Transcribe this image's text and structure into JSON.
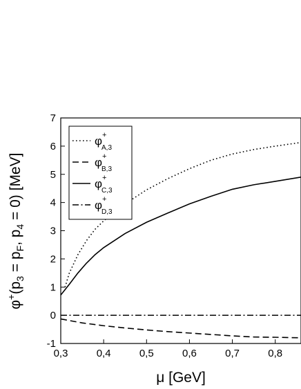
{
  "chart_data": {
    "type": "line",
    "title": "",
    "xlabel": "μ [GeV]",
    "ylabel": "φ⁺(p₃ = p_F, p₄ = 0) [MeV]",
    "ylabel_parts": {
      "phi": "φ",
      "sup": "+",
      "rest1": "(p",
      "sub1": "3",
      "rest2": " = p",
      "sub2": "F",
      "rest3": ", p",
      "sub3": "4",
      "rest4": " = 0) [MeV]"
    },
    "xlim": [
      0.3,
      0.86
    ],
    "ylim": [
      -1,
      7
    ],
    "xticks": [
      0.3,
      0.4,
      0.5,
      0.6,
      0.7,
      0.8
    ],
    "xtick_labels": [
      "0,3",
      "0,4",
      "0,5",
      "0,6",
      "0,7",
      "0,8"
    ],
    "yticks": [
      -1,
      0,
      1,
      2,
      3,
      4,
      5,
      6,
      7
    ],
    "ytick_labels": [
      "-1",
      "0",
      "1",
      "2",
      "3",
      "4",
      "5",
      "6",
      "7"
    ],
    "grid": false,
    "legend_position": "top-left",
    "series": [
      {
        "name": "φ⁺A,3",
        "symbol": "φ",
        "sup": "+",
        "sub": "A,3",
        "style": "dotted",
        "x": [
          0.31,
          0.32,
          0.34,
          0.36,
          0.38,
          0.4,
          0.45,
          0.5,
          0.55,
          0.6,
          0.65,
          0.7,
          0.75,
          0.8,
          0.86
        ],
        "y": [
          1.0,
          1.5,
          2.15,
          2.65,
          3.05,
          3.35,
          3.95,
          4.45,
          4.85,
          5.2,
          5.5,
          5.72,
          5.88,
          6.0,
          6.13
        ]
      },
      {
        "name": "φ⁺B,3",
        "symbol": "φ",
        "sup": "+",
        "sub": "B,3",
        "style": "dashed",
        "x": [
          0.3,
          0.35,
          0.4,
          0.45,
          0.5,
          0.55,
          0.6,
          0.65,
          0.7,
          0.75,
          0.8,
          0.86
        ],
        "y": [
          -0.13,
          -0.27,
          -0.37,
          -0.45,
          -0.52,
          -0.58,
          -0.63,
          -0.68,
          -0.73,
          -0.77,
          -0.78,
          -0.8
        ]
      },
      {
        "name": "φ⁺C,3",
        "symbol": "φ",
        "sup": "+",
        "sub": "C,3",
        "style": "solid",
        "x": [
          0.3,
          0.32,
          0.34,
          0.36,
          0.38,
          0.4,
          0.45,
          0.5,
          0.55,
          0.6,
          0.65,
          0.7,
          0.75,
          0.8,
          0.86
        ],
        "y": [
          0.72,
          1.1,
          1.5,
          1.85,
          2.15,
          2.4,
          2.9,
          3.3,
          3.63,
          3.95,
          4.22,
          4.47,
          4.63,
          4.75,
          4.9
        ]
      },
      {
        "name": "φ⁺D,3",
        "symbol": "φ",
        "sup": "+",
        "sub": "D,3",
        "style": "dash-dot",
        "x": [
          0.3,
          0.86
        ],
        "y": [
          0.0,
          0.0
        ]
      }
    ]
  }
}
